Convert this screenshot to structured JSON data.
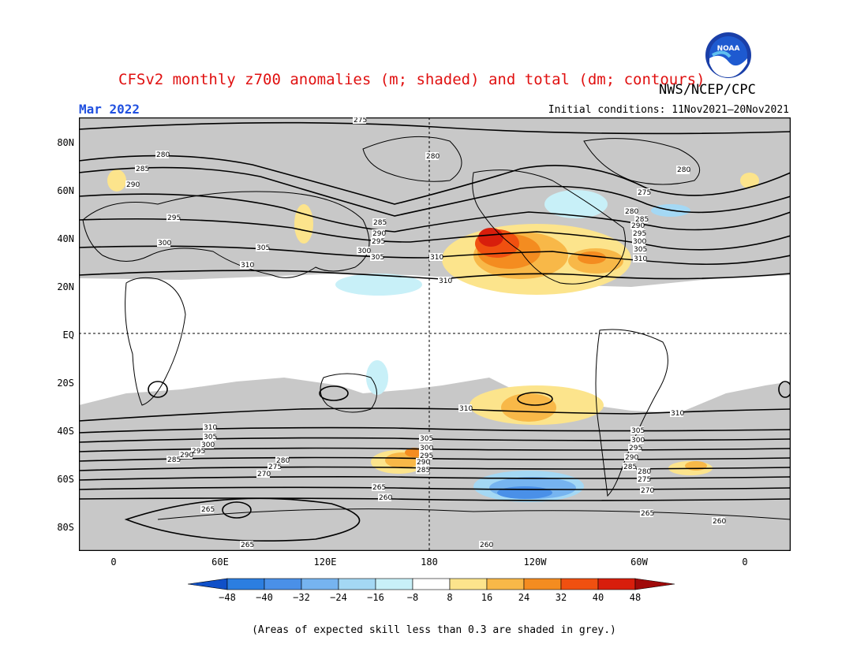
{
  "header": {
    "title": "CFSv2 monthly z700 anomalies (m; shaded) and total (dm; contours)",
    "agency": "NWS/NCEP/CPC",
    "month": "Mar 2022",
    "initial_conditions": "Initial conditions: 11Nov2021–20Nov2021"
  },
  "map": {
    "lat_labels": [
      "80N",
      "60N",
      "40N",
      "20N",
      "EQ",
      "20S",
      "40S",
      "60S",
      "80S"
    ],
    "lon_labels": [
      "0",
      "60E",
      "120E",
      "180",
      "120W",
      "60W",
      "0"
    ],
    "contour_labels": [
      "275",
      "280",
      "280",
      "280",
      "285",
      "290",
      "295",
      "300",
      "305",
      "310",
      "310",
      "305",
      "310",
      "285",
      "290",
      "295",
      "300",
      "275",
      "280",
      "285",
      "290",
      "295",
      "300",
      "305",
      "310",
      "310",
      "310",
      "305",
      "300",
      "295",
      "290",
      "285",
      "310",
      "305",
      "300",
      "295",
      "290",
      "285",
      "280",
      "280",
      "275",
      "270",
      "305",
      "300",
      "295",
      "290",
      "285",
      "280",
      "275",
      "270",
      "265",
      "265",
      "260",
      "265",
      "260",
      "265",
      "260"
    ],
    "skill_mask_color": "#c8c8c8"
  },
  "colorbar": {
    "labels": [
      "−48",
      "−40",
      "−32",
      "−24",
      "−16",
      "−8",
      "8",
      "16",
      "24",
      "32",
      "40",
      "48"
    ],
    "colors": [
      "#1050c8",
      "#2c7ee0",
      "#4a90e8",
      "#76b4f0",
      "#a4d8f4",
      "#c8f0f8",
      "#ffffff",
      "#fce48c",
      "#f8b848",
      "#f48c20",
      "#f05010",
      "#d81e0c",
      "#a00a0a"
    ]
  },
  "footer": {
    "note": "(Areas of expected skill less than 0.3 are shaded in grey.)"
  }
}
